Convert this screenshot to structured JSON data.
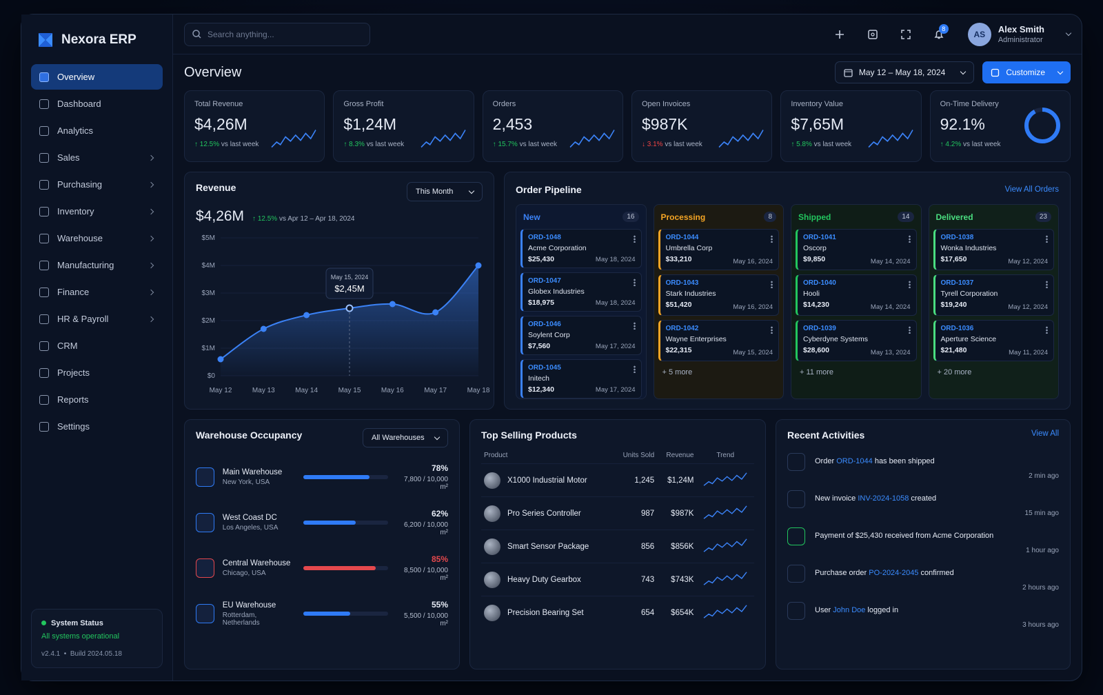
{
  "brand": "Nexora ERP",
  "search_placeholder": "Search anything...",
  "nav": [
    {
      "label": "Overview",
      "active": true
    },
    {
      "label": "Dashboard"
    },
    {
      "label": "Analytics"
    },
    {
      "label": "Sales",
      "arrow": true
    },
    {
      "label": "Purchasing",
      "arrow": true
    },
    {
      "label": "Inventory",
      "arrow": true
    },
    {
      "label": "Warehouse",
      "arrow": true
    },
    {
      "label": "Manufacturing",
      "arrow": true
    },
    {
      "label": "Finance",
      "arrow": true
    },
    {
      "label": "HR & Payroll",
      "arrow": true
    },
    {
      "label": "CRM"
    },
    {
      "label": "Projects"
    },
    {
      "label": "Reports"
    },
    {
      "label": "Settings"
    }
  ],
  "system_status": {
    "title": "System Status",
    "status": "All systems operational",
    "version": "v2.4.1",
    "build": "Build 2024.05.18"
  },
  "header": {
    "page_title": "Overview",
    "notifications": 8,
    "user": {
      "initials": "AS",
      "name": "Alex Smith",
      "role": "Administrator"
    },
    "date_range": "May 12 – May 18, 2024",
    "customize": "Customize"
  },
  "kpis": [
    {
      "label": "Total Revenue",
      "value": "$4,26M",
      "change": "12.5%",
      "direction": "up",
      "compare": "vs last week"
    },
    {
      "label": "Gross Profit",
      "value": "$1,24M",
      "change": "8.3%",
      "direction": "up",
      "compare": "vs last week"
    },
    {
      "label": "Orders",
      "value": "2,453",
      "change": "15.7%",
      "direction": "up",
      "compare": "vs last week"
    },
    {
      "label": "Open Invoices",
      "value": "$987K",
      "change": "3.1%",
      "direction": "down",
      "compare": "vs last week"
    },
    {
      "label": "Inventory Value",
      "value": "$7,65M",
      "change": "5.8%",
      "direction": "up",
      "compare": "vs last week"
    },
    {
      "label": "On-Time Delivery",
      "value": "92.1%",
      "change": "4.2%",
      "direction": "up",
      "compare": "vs last week",
      "donut": true
    }
  ],
  "revenue": {
    "title": "Revenue",
    "period": "This Month",
    "total": "$4,26M",
    "change": "12.5%",
    "compare": "vs Apr 12 – Apr 18, 2024",
    "tooltip": {
      "date": "May 15, 2024",
      "value": "$2,45M",
      "index": 3
    },
    "chart": {
      "type": "line",
      "categories": [
        "May 12",
        "May 13",
        "May 14",
        "May 15",
        "May 16",
        "May 17",
        "May 18"
      ],
      "values": [
        0.6,
        1.7,
        2.2,
        2.45,
        2.6,
        2.3,
        4.0
      ],
      "color": "#3b82f6",
      "ylim": [
        0,
        5
      ],
      "yticks": [
        {
          "value": 0,
          "label": "$0"
        },
        {
          "value": 1,
          "label": "$1M"
        },
        {
          "value": 2,
          "label": "$2M"
        },
        {
          "value": 3,
          "label": "$3M"
        },
        {
          "value": 4,
          "label": "$4M"
        },
        {
          "value": 5,
          "label": "$5M"
        }
      ]
    }
  },
  "pipeline": {
    "title": "Order Pipeline",
    "view_all": "View All Orders",
    "columns": [
      {
        "name": "New",
        "count": 16,
        "color": "#3b82f6",
        "bg": "#0d1830",
        "orders": [
          {
            "id": "ORD-1048",
            "customer": "Acme Corporation",
            "amount": "$25,430",
            "date": "May 18, 2024"
          },
          {
            "id": "ORD-1047",
            "customer": "Globex Industries",
            "amount": "$18,975",
            "date": "May 18, 2024"
          },
          {
            "id": "ORD-1046",
            "customer": "Soylent Corp",
            "amount": "$7,560",
            "date": "May 17, 2024"
          },
          {
            "id": "ORD-1045",
            "customer": "Initech",
            "amount": "$12,340",
            "date": "May 17, 2024"
          }
        ]
      },
      {
        "name": "Processing",
        "count": 8,
        "color": "#f5a524",
        "bg": "#1c1a12",
        "orders": [
          {
            "id": "ORD-1044",
            "customer": "Umbrella Corp",
            "amount": "$33,210",
            "date": "May 16, 2024"
          },
          {
            "id": "ORD-1043",
            "customer": "Stark Industries",
            "amount": "$51,420",
            "date": "May 16, 2024"
          },
          {
            "id": "ORD-1042",
            "customer": "Wayne Enterprises",
            "amount": "$22,315",
            "date": "May 15, 2024"
          }
        ],
        "more": "+ 5 more"
      },
      {
        "name": "Shipped",
        "count": 14,
        "color": "#22c55e",
        "bg": "#0f1d17",
        "orders": [
          {
            "id": "ORD-1041",
            "customer": "Oscorp",
            "amount": "$9,850",
            "date": "May 14, 2024"
          },
          {
            "id": "ORD-1040",
            "customer": "Hooli",
            "amount": "$14,230",
            "date": "May 14, 2024"
          },
          {
            "id": "ORD-1039",
            "customer": "Cyberdyne Systems",
            "amount": "$28,600",
            "date": "May 13, 2024"
          }
        ],
        "more": "+ 11 more"
      },
      {
        "name": "Delivered",
        "count": 23,
        "color": "#4ade80",
        "bg": "#10201a",
        "orders": [
          {
            "id": "ORD-1038",
            "customer": "Wonka Industries",
            "amount": "$17,650",
            "date": "May 12, 2024"
          },
          {
            "id": "ORD-1037",
            "customer": "Tyrell Corporation",
            "amount": "$19,240",
            "date": "May 12, 2024"
          },
          {
            "id": "ORD-1036",
            "customer": "Aperture Science",
            "amount": "$21,480",
            "date": "May 11, 2024"
          }
        ],
        "more": "+ 20 more"
      }
    ]
  },
  "warehouses": {
    "title": "Warehouse Occupancy",
    "filter": "All Warehouses",
    "items": [
      {
        "name": "Main Warehouse",
        "location": "New York, USA",
        "percent": "78%",
        "capacity": "7,800 / 10,000 m²",
        "color": "#2f7bf6"
      },
      {
        "name": "West Coast DC",
        "location": "Los Angeles, USA",
        "percent": "62%",
        "capacity": "6,200 / 10,000 m²",
        "color": "#2f7bf6"
      },
      {
        "name": "Central Warehouse",
        "location": "Chicago, USA",
        "percent": "85%",
        "capacity": "8,500 / 10,000 m²",
        "color": "#e5484d"
      },
      {
        "name": "EU Warehouse",
        "location": "Rotterdam, Netherlands",
        "percent": "55%",
        "capacity": "5,500 / 10,000 m²",
        "color": "#2f7bf6"
      }
    ]
  },
  "products": {
    "title": "Top Selling Products",
    "columns": [
      "Product",
      "Units Sold",
      "Revenue",
      "Trend"
    ],
    "rows": [
      [
        "X1000 Industrial Motor",
        "1,245",
        "$1,24M"
      ],
      [
        "Pro Series Controller",
        "987",
        "$987K"
      ],
      [
        "Smart Sensor Package",
        "856",
        "$856K"
      ],
      [
        "Heavy Duty Gearbox",
        "743",
        "$743K"
      ],
      [
        "Precision Bearing Set",
        "654",
        "$654K"
      ]
    ]
  },
  "activities": {
    "title": "Recent Activities",
    "view_all": "View All",
    "items": [
      {
        "before": "Order ",
        "link": "ORD-1044",
        "after": " has been shipped",
        "time": "2 min ago"
      },
      {
        "before": "New invoice ",
        "link": "INV-2024-1058",
        "after": " created",
        "time": "15 min ago"
      },
      {
        "before": "Payment of $25,430 received from Acme Corporation",
        "time": "1 hour ago"
      },
      {
        "before": "Purchase order ",
        "link": "PO-2024-2045",
        "after": " confirmed",
        "time": "2 hours ago"
      },
      {
        "before": "User ",
        "link": "John Doe",
        "after": " logged in",
        "time": "3 hours ago"
      }
    ]
  }
}
